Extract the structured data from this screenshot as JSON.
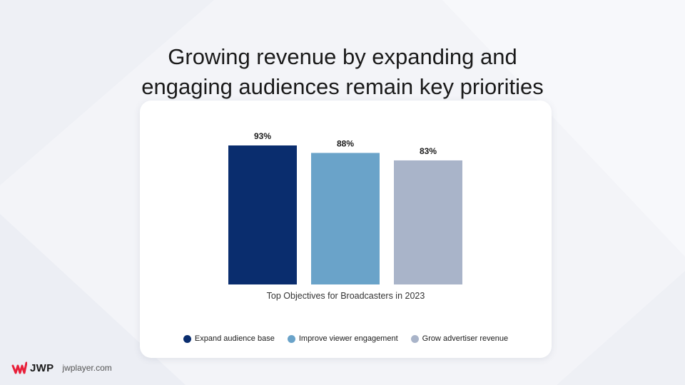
{
  "title_line1": "Growing revenue by expanding and",
  "title_line2": "engaging audiences remain key priorities",
  "chart_data": {
    "type": "bar",
    "title": "Growing revenue by expanding and engaging audiences remain key priorities",
    "caption": "Top Objectives for Broadcasters in 2023",
    "categories": [
      "Expand audience base",
      "Improve viewer engagement",
      "Grow advertiser revenue"
    ],
    "values": [
      93,
      88,
      83
    ],
    "labels": [
      "93%",
      "88%",
      "83%"
    ],
    "unit": "%",
    "ylim": [
      0,
      100
    ],
    "colors": [
      "#0a2d6e",
      "#6aa3c9",
      "#a9b4c9"
    ],
    "grid": false,
    "legend": "bottom"
  },
  "footer": {
    "brand": "JWP",
    "site": "jwplayer.com",
    "brand_color": "#e8203a"
  }
}
